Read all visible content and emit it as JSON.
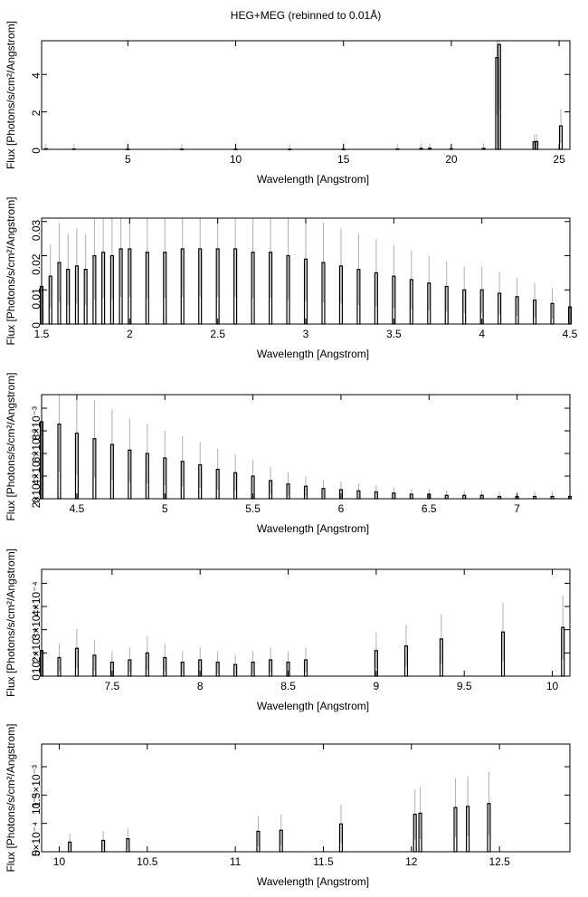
{
  "title": "HEG+MEG (rebinned to 0.01Å)",
  "chart_data": [
    {
      "type": "bar",
      "xlabel": "Wavelength [Angstrom]",
      "ylabel": "Flux [Photons/s/cm²/Angstrom]",
      "xlim": [
        1.0,
        25.5
      ],
      "ylim": [
        0,
        5.8
      ],
      "xticks": [
        5,
        10,
        15,
        20,
        25
      ],
      "xtick_labels": [
        "5",
        "10",
        "15",
        "20",
        "25"
      ],
      "yticks": [
        0,
        2,
        4
      ],
      "ytick_labels": [
        "0",
        "2",
        "4"
      ],
      "x": [
        1.2,
        2.5,
        5.0,
        7.5,
        10.0,
        12.5,
        15.0,
        17.5,
        18.6,
        19.0,
        20.0,
        21.5,
        22.12,
        22.22,
        23.85,
        23.95,
        25.08
      ],
      "values": [
        0.03,
        0.02,
        0.01,
        0.01,
        0.01,
        0.01,
        0.01,
        0.02,
        0.05,
        0.06,
        0.03,
        0.05,
        4.9,
        5.6,
        0.4,
        0.42,
        1.25
      ]
    },
    {
      "type": "bar",
      "xlabel": "Wavelength [Angstrom]",
      "ylabel": "Flux [Photons/s/cm²/Angstrom]",
      "xlim": [
        1.5,
        4.5
      ],
      "ylim": [
        0,
        0.031
      ],
      "xticks": [
        1.5,
        2,
        2.5,
        3,
        3.5,
        4,
        4.5
      ],
      "xtick_labels": [
        "1.5",
        "2",
        "2.5",
        "3",
        "3.5",
        "4",
        "4.5"
      ],
      "yticks": [
        0,
        0.01,
        0.02,
        0.03
      ],
      "ytick_labels": [
        "0",
        "0.01",
        "0.02",
        "0.03"
      ],
      "x": [
        1.5,
        1.55,
        1.6,
        1.65,
        1.7,
        1.75,
        1.8,
        1.85,
        1.9,
        1.95,
        2.0,
        2.1,
        2.2,
        2.3,
        2.4,
        2.5,
        2.6,
        2.7,
        2.8,
        2.9,
        3.0,
        3.1,
        3.2,
        3.3,
        3.4,
        3.5,
        3.6,
        3.7,
        3.8,
        3.9,
        4.0,
        4.1,
        4.2,
        4.3,
        4.4,
        4.5
      ],
      "values": [
        0.011,
        0.014,
        0.018,
        0.016,
        0.017,
        0.016,
        0.02,
        0.021,
        0.02,
        0.022,
        0.022,
        0.021,
        0.021,
        0.022,
        0.022,
        0.022,
        0.022,
        0.021,
        0.021,
        0.02,
        0.019,
        0.018,
        0.017,
        0.016,
        0.015,
        0.014,
        0.013,
        0.012,
        0.011,
        0.01,
        0.01,
        0.009,
        0.008,
        0.007,
        0.006,
        0.005
      ]
    },
    {
      "type": "bar",
      "xlabel": "Wavelength [Angstrom]",
      "ylabel": "Flux [Photons/s/cm²/Angstrom]",
      "xlim": [
        4.3,
        7.3
      ],
      "ylim": [
        0,
        0.0092
      ],
      "xticks": [
        4.5,
        5,
        5.5,
        6,
        6.5,
        7
      ],
      "xtick_labels": [
        "4.5",
        "5",
        "5.5",
        "6",
        "6.5",
        "7"
      ],
      "yticks": [
        0,
        0.002,
        0.004,
        0.006,
        0.008
      ],
      "ytick_labels": [
        "0",
        "2×10⁻³",
        "4×10⁻³",
        "6×10⁻³",
        "8×10⁻³"
      ],
      "x": [
        4.3,
        4.4,
        4.5,
        4.6,
        4.7,
        4.8,
        4.9,
        5.0,
        5.1,
        5.2,
        5.3,
        5.4,
        5.5,
        5.6,
        5.7,
        5.8,
        5.9,
        6.0,
        6.1,
        6.2,
        6.3,
        6.4,
        6.5,
        6.6,
        6.7,
        6.8,
        6.9,
        7.0,
        7.1,
        7.2,
        7.3
      ],
      "values": [
        0.0068,
        0.0066,
        0.0058,
        0.0053,
        0.0048,
        0.0043,
        0.004,
        0.0036,
        0.0033,
        0.003,
        0.0026,
        0.0023,
        0.002,
        0.0016,
        0.0013,
        0.0011,
        0.0009,
        0.0008,
        0.0007,
        0.0006,
        0.0005,
        0.0004,
        0.0004,
        0.0003,
        0.0003,
        0.0003,
        0.0002,
        0.0002,
        0.0002,
        0.0002,
        0.0002
      ]
    },
    {
      "type": "bar",
      "xlabel": "Wavelength [Angstrom]",
      "ylabel": "Flux [Photons/s/cm²/Angstrom]",
      "xlim": [
        7.1,
        10.1
      ],
      "ylim": [
        0,
        0.00046
      ],
      "xticks": [
        7.5,
        8,
        8.5,
        9,
        9.5,
        10
      ],
      "xtick_labels": [
        "7.5",
        "8",
        "8.5",
        "9",
        "9.5",
        "10"
      ],
      "yticks": [
        0,
        0.0001,
        0.0002,
        0.0003,
        0.0004
      ],
      "ytick_labels": [
        "0",
        "10⁻⁴",
        "2×10⁻⁴",
        "3×10⁻⁴",
        "4×10⁻⁴"
      ],
      "x": [
        7.1,
        7.2,
        7.3,
        7.4,
        7.5,
        7.6,
        7.7,
        7.8,
        7.9,
        8.0,
        8.1,
        8.2,
        8.3,
        8.4,
        8.5,
        8.6,
        9.0,
        9.17,
        9.37,
        9.72,
        10.06
      ],
      "values": [
        0.00011,
        8e-05,
        0.00012,
        9e-05,
        6e-05,
        7e-05,
        0.0001,
        8e-05,
        6e-05,
        7e-05,
        6e-05,
        5e-05,
        6e-05,
        7e-05,
        6e-05,
        7e-05,
        0.00011,
        0.00013,
        0.00016,
        0.00019,
        0.00021
      ]
    },
    {
      "type": "bar",
      "xlabel": "Wavelength [Angstrom]",
      "ylabel": "Flux [Photons/s/cm²/Angstrom]",
      "xlim": [
        9.9,
        12.9
      ],
      "ylim": [
        0,
        0.0019
      ],
      "xticks": [
        10,
        10.5,
        11,
        11.5,
        12,
        12.5
      ],
      "xtick_labels": [
        "10",
        "10.5",
        "11",
        "11.5",
        "12",
        "12.5"
      ],
      "yticks": [
        0,
        0.0005,
        0.001,
        0.0015
      ],
      "ytick_labels": [
        "0",
        "5×10⁻⁴",
        "10⁻³",
        "1.5×10⁻³"
      ],
      "x": [
        10.06,
        10.25,
        10.39,
        11.13,
        11.26,
        11.6,
        12.02,
        12.05,
        12.25,
        12.32,
        12.44
      ],
      "values": [
        0.00017,
        0.0002,
        0.00023,
        0.00036,
        0.00038,
        0.00049,
        0.00066,
        0.00068,
        0.00078,
        0.0008,
        0.00085
      ]
    }
  ]
}
